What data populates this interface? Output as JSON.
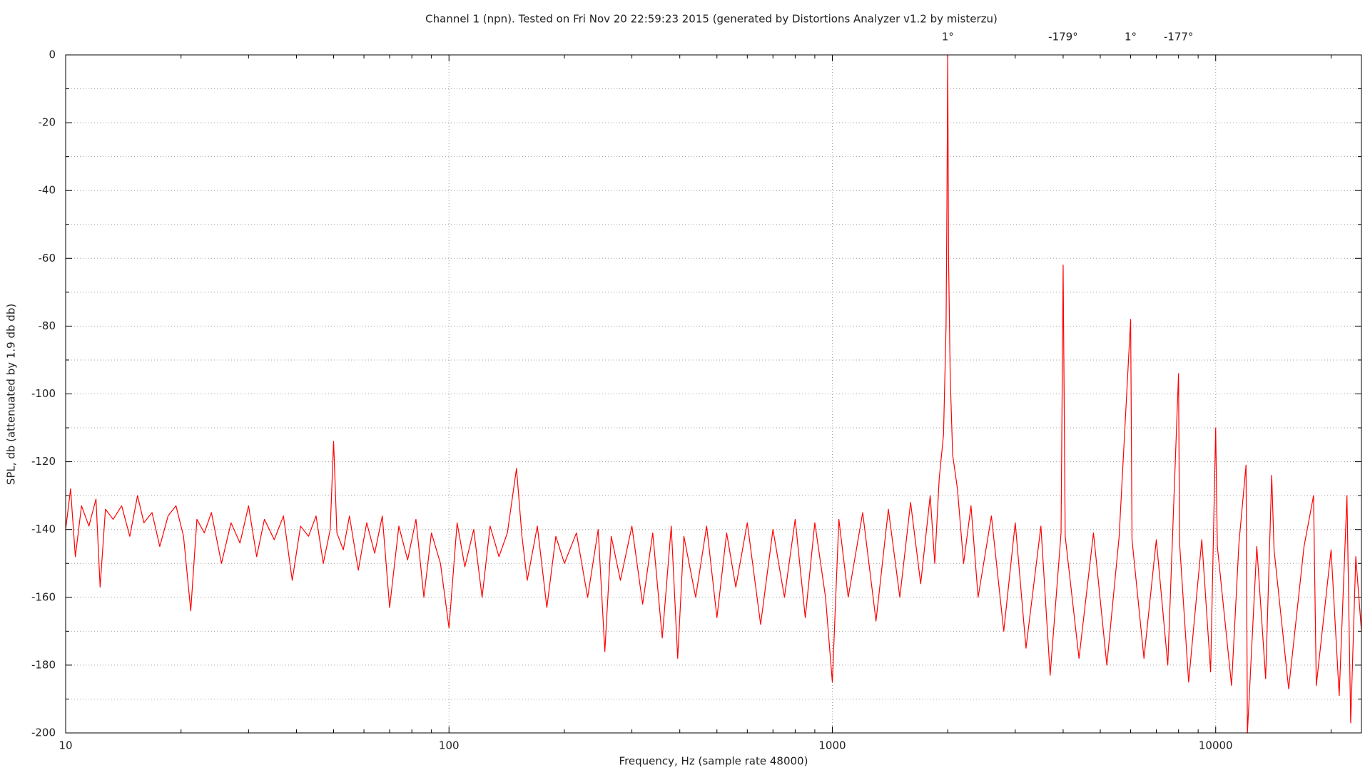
{
  "chart_data": {
    "type": "line",
    "title": "Channel 1 (npn). Tested on Fri Nov 20 22:59:23 2015 (generated by Distortions Analyzer v1.2 by misterzu)",
    "x_label": "Frequency, Hz (sample rate 48000)",
    "y_label": "SPL, db (attenuated by 1.9 db db)",
    "x_scale": "log",
    "color": "#ff0000",
    "grid": true,
    "xlim": [
      10,
      24000
    ],
    "ylim": [
      -200,
      0
    ],
    "xticks": [
      10,
      100,
      1000,
      10000
    ],
    "x_minor_ticks": [
      20,
      30,
      40,
      50,
      60,
      70,
      80,
      90,
      200,
      300,
      400,
      500,
      600,
      700,
      800,
      900,
      2000,
      3000,
      4000,
      5000,
      6000,
      7000,
      8000,
      9000,
      20000
    ],
    "yticks": [
      0,
      -20,
      -40,
      -60,
      -80,
      -100,
      -120,
      -140,
      -160,
      -180,
      -200
    ],
    "y_minor_ticks": [
      -10,
      -30,
      -50,
      -70,
      -90,
      -110,
      -130,
      -150,
      -170,
      -190
    ],
    "annotations": [
      {
        "x": 2000,
        "text": "1°"
      },
      {
        "x": 4000,
        "text": "-179°"
      },
      {
        "x": 6000,
        "text": "1°"
      },
      {
        "x": 8000,
        "text": "-177°"
      }
    ],
    "x": [
      10,
      10.3,
      10.6,
      11,
      11.5,
      12,
      12.3,
      12.7,
      13.3,
      14,
      14.7,
      15.4,
      16,
      16.8,
      17.6,
      18.5,
      19.4,
      20.3,
      21.2,
      22,
      23,
      24,
      25.5,
      27,
      28.5,
      30,
      31.5,
      33,
      35,
      37,
      39,
      41,
      43,
      45,
      47,
      49,
      50,
      51,
      53,
      55,
      58,
      61,
      64,
      67,
      70,
      74,
      78,
      82,
      86,
      90,
      95,
      100,
      105,
      110,
      116,
      122,
      128,
      135,
      142,
      150,
      155,
      160,
      170,
      180,
      190,
      200,
      215,
      230,
      245,
      255,
      265,
      280,
      300,
      320,
      340,
      360,
      380,
      395,
      410,
      440,
      470,
      500,
      530,
      560,
      600,
      650,
      700,
      750,
      800,
      850,
      900,
      960,
      1000,
      1040,
      1100,
      1200,
      1300,
      1400,
      1500,
      1600,
      1700,
      1800,
      1850,
      1900,
      1950,
      1980,
      1990,
      2000,
      2010,
      2030,
      2060,
      2120,
      2200,
      2300,
      2400,
      2600,
      2800,
      3000,
      3200,
      3500,
      3700,
      3950,
      4000,
      4050,
      4400,
      4800,
      5200,
      5600,
      6000,
      6050,
      6500,
      7000,
      7500,
      8000,
      8050,
      8500,
      9200,
      9700,
      10000,
      10100,
      11000,
      11500,
      12000,
      12100,
      12800,
      13500,
      14000,
      14200,
      15500,
      17000,
      18000,
      18300,
      20000,
      21000,
      22000,
      22500,
      23200,
      24000
    ],
    "values": [
      -140,
      -128,
      -148,
      -133,
      -139,
      -131,
      -157,
      -134,
      -137,
      -133,
      -142,
      -130,
      -138,
      -135,
      -145,
      -136,
      -133,
      -142,
      -164,
      -137,
      -141,
      -135,
      -150,
      -138,
      -144,
      -133,
      -148,
      -137,
      -143,
      -136,
      -155,
      -139,
      -142,
      -136,
      -150,
      -140,
      -114,
      -141,
      -146,
      -136,
      -152,
      -138,
      -147,
      -136,
      -163,
      -139,
      -149,
      -137,
      -160,
      -141,
      -150,
      -169,
      -138,
      -151,
      -140,
      -160,
      -139,
      -148,
      -141,
      -122,
      -142,
      -155,
      -139,
      -163,
      -142,
      -150,
      -141,
      -160,
      -140,
      -176,
      -142,
      -155,
      -139,
      -162,
      -141,
      -172,
      -139,
      -178,
      -142,
      -160,
      -139,
      -166,
      -141,
      -157,
      -138,
      -168,
      -140,
      -160,
      -137,
      -166,
      -138,
      -160,
      -185,
      -137,
      -160,
      -135,
      -167,
      -134,
      -160,
      -132,
      -156,
      -130,
      -150,
      -125,
      -112,
      -80,
      -45,
      0,
      -60,
      -95,
      -118,
      -128,
      -150,
      -133,
      -160,
      -136,
      -170,
      -138,
      -175,
      -139,
      -183,
      -141,
      -62,
      -142,
      -178,
      -141,
      -180,
      -142,
      -78,
      -143,
      -178,
      -143,
      -180,
      -94,
      -144,
      -185,
      -143,
      -182,
      -110,
      -145,
      -186,
      -144,
      -121,
      -200,
      -145,
      -184,
      -124,
      -146,
      -187,
      -145,
      -130,
      -186,
      -146,
      -189,
      -130,
      -197,
      -148,
      -170
    ]
  }
}
